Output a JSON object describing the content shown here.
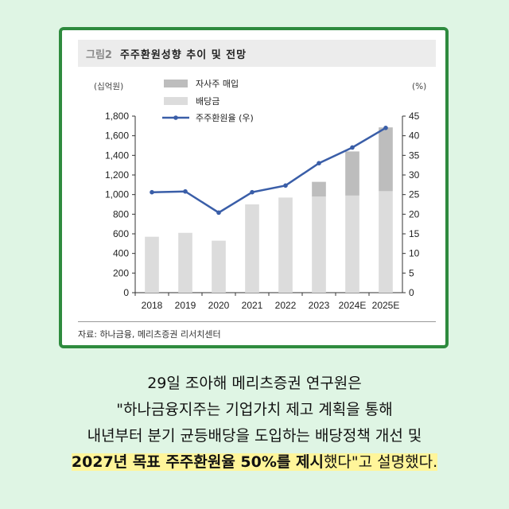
{
  "colors": {
    "background": "#dff5e4",
    "border": "#2e8b3e",
    "dividend_bar": "#dcdcdc",
    "buyback_bar": "#bdbdbd",
    "line": "#3a5ea8",
    "highlight": "#fff59a"
  },
  "figure": {
    "number": "그림2",
    "title": "주주환원성향 추이 및 전망",
    "source": "자료: 하나금융, 메리츠증권 리서치센터"
  },
  "chart_data": {
    "type": "bar",
    "categories": [
      "2018",
      "2019",
      "2020",
      "2021",
      "2022",
      "2023",
      "2024E",
      "2025E"
    ],
    "left_unit": "(십억원)",
    "right_unit": "(%)",
    "ylim_left": [
      0,
      1800
    ],
    "yticks_left": [
      "0",
      "200",
      "400",
      "600",
      "800",
      "1,000",
      "1,200",
      "1,400",
      "1,600",
      "1,800"
    ],
    "ylim_right": [
      0,
      45
    ],
    "yticks_right": [
      "0",
      "5",
      "10",
      "15",
      "20",
      "25",
      "30",
      "35",
      "40",
      "45"
    ],
    "grid": false,
    "legend_position": "top-left",
    "series": [
      {
        "name": "자사주 매입",
        "kind": "bar-stacked",
        "values": [
          0,
          0,
          0,
          0,
          0,
          150,
          450,
          650
        ]
      },
      {
        "name": "배당금",
        "kind": "bar-stacked",
        "values": [
          570,
          610,
          530,
          900,
          970,
          980,
          990,
          1035
        ]
      },
      {
        "name": "주주환원율 (우)",
        "kind": "line",
        "axis": "right",
        "values": [
          25.6,
          25.8,
          20.4,
          25.6,
          27.3,
          33.0,
          37.0,
          42.0
        ]
      }
    ]
  },
  "caption": {
    "line1": "29일 조아해 메리츠증권 연구원은",
    "line2": "\"하나금융지주는 기업가치 제고 계획을 통해",
    "line3": "내년부터 분기 균등배당을 도입하는 배당정책 개선 및",
    "line4_bold": "2027년 목표 주주환원율 50%를 제시",
    "line4_rest": "했다\"고 설명했다."
  }
}
